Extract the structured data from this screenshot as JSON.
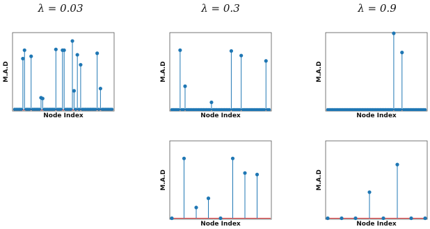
{
  "columns": [
    {
      "title": "λ = 0.03"
    },
    {
      "title": "λ = 0.3"
    },
    {
      "title": "λ = 0.9"
    }
  ],
  "chart_data": [
    {
      "type": "stem",
      "column": 0,
      "row": 0,
      "xlabel": "Node Index",
      "ylabel": "M.A.D",
      "x_count": 60,
      "ylim": [
        0,
        1
      ],
      "points": [
        {
          "x": 5,
          "y": 0.67
        },
        {
          "x": 6,
          "y": 0.78
        },
        {
          "x": 10,
          "y": 0.7
        },
        {
          "x": 16,
          "y": 0.16
        },
        {
          "x": 17,
          "y": 0.15
        },
        {
          "x": 25,
          "y": 0.79
        },
        {
          "x": 29,
          "y": 0.78
        },
        {
          "x": 30,
          "y": 0.78
        },
        {
          "x": 35,
          "y": 0.9
        },
        {
          "x": 36,
          "y": 0.25
        },
        {
          "x": 38,
          "y": 0.72
        },
        {
          "x": 40,
          "y": 0.59
        },
        {
          "x": 50,
          "y": 0.74
        },
        {
          "x": 52,
          "y": 0.28
        }
      ],
      "background_level": 0.01
    },
    {
      "type": "stem",
      "column": 1,
      "row": 0,
      "xlabel": "Node Index",
      "ylabel": "M.A.D",
      "x_count": 60,
      "ylim": [
        0,
        1
      ],
      "points": [
        {
          "x": 5,
          "y": 0.78
        },
        {
          "x": 8,
          "y": 0.31
        },
        {
          "x": 24,
          "y": 0.1
        },
        {
          "x": 36,
          "y": 0.77
        },
        {
          "x": 42,
          "y": 0.71
        },
        {
          "x": 57,
          "y": 0.64
        }
      ],
      "background_level": 0.005
    },
    {
      "type": "stem",
      "column": 2,
      "row": 0,
      "xlabel": "Node Index",
      "ylabel": "M.A.D",
      "x_count": 60,
      "ylim": [
        0,
        1
      ],
      "points": [
        {
          "x": 40,
          "y": 1.0
        },
        {
          "x": 45,
          "y": 0.75
        }
      ],
      "background_level": 0.005
    },
    {
      "type": "stem",
      "column": 1,
      "row": 1,
      "xlabel": "Node Index",
      "ylabel": "M.A.D",
      "x_count": 9,
      "ylim": [
        0,
        1
      ],
      "points": [
        {
          "x": 0,
          "y": 0.0
        },
        {
          "x": 1,
          "y": 0.78
        },
        {
          "x": 2,
          "y": 0.14
        },
        {
          "x": 3,
          "y": 0.26
        },
        {
          "x": 4,
          "y": 0.0
        },
        {
          "x": 5,
          "y": 0.78
        },
        {
          "x": 6,
          "y": 0.59
        },
        {
          "x": 7,
          "y": 0.57
        }
      ]
    },
    {
      "type": "stem",
      "column": 2,
      "row": 1,
      "xlabel": "Node Index",
      "ylabel": "M.A.D",
      "x_count": 8,
      "ylim": [
        0,
        1
      ],
      "points": [
        {
          "x": 0,
          "y": 0.0
        },
        {
          "x": 1,
          "y": 0.0
        },
        {
          "x": 2,
          "y": 0.0
        },
        {
          "x": 3,
          "y": 0.34
        },
        {
          "x": 4,
          "y": 0.0
        },
        {
          "x": 5,
          "y": 0.7
        },
        {
          "x": 6,
          "y": 0.0
        },
        {
          "x": 7,
          "y": 0.0
        }
      ]
    }
  ]
}
